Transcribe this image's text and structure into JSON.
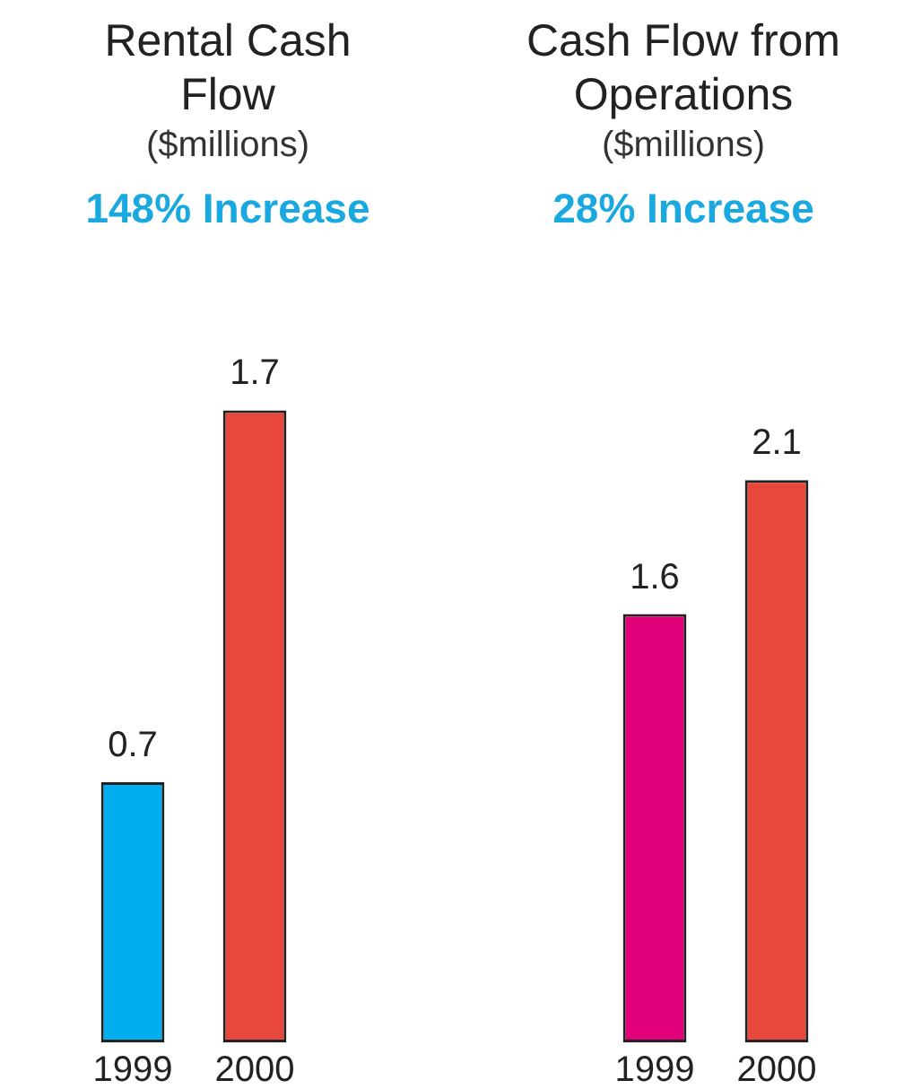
{
  "chart_data": [
    {
      "type": "bar",
      "title": "Rental Cash Flow",
      "subtitle": "($millions)",
      "annotations": [
        "148% Increase"
      ],
      "categories": [
        "1999",
        "2000"
      ],
      "values": [
        0.7,
        1.7
      ],
      "colors": [
        "#00aeef",
        "#e8483b"
      ],
      "data_labels": true,
      "tick_labels": "x",
      "grid": false,
      "legend": false
    },
    {
      "type": "bar",
      "title": "Cash Flow from Operations",
      "subtitle": "($millions)",
      "annotations": [
        "28% Increase"
      ],
      "categories": [
        "1999",
        "2000"
      ],
      "values": [
        1.6,
        2.1
      ],
      "colors": [
        "#e2007a",
        "#e8483b"
      ],
      "data_labels": true,
      "tick_labels": "x",
      "grid": false,
      "legend": false
    }
  ]
}
